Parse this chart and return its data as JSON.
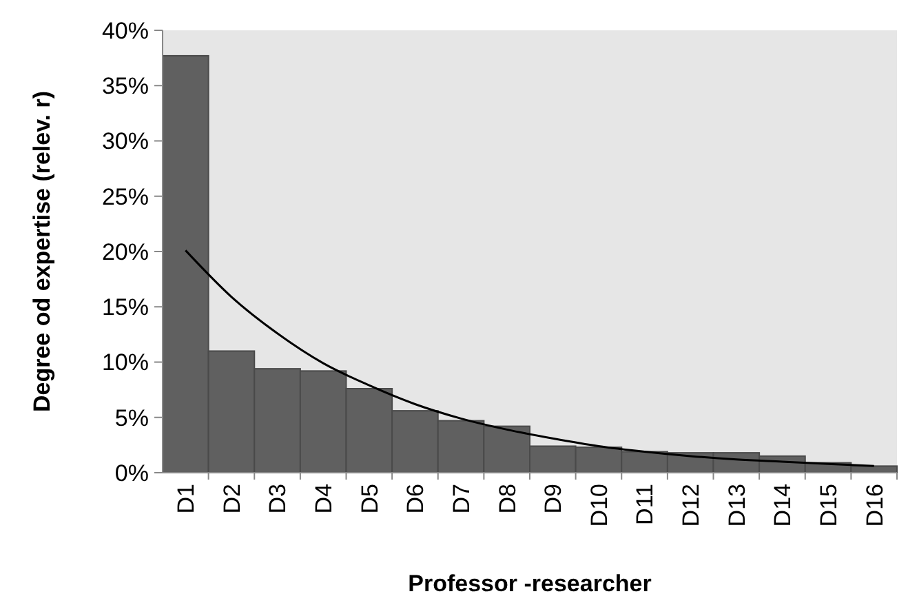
{
  "chart_data": {
    "type": "bar",
    "xlabel": "Professor -researcher",
    "ylabel": "Degree od expertise (relev. r)",
    "categories": [
      "D1",
      "D2",
      "D3",
      "D4",
      "D5",
      "D6",
      "D7",
      "D8",
      "D9",
      "D10",
      "D11",
      "D12",
      "D13",
      "D14",
      "D15",
      "D16"
    ],
    "series": [
      {
        "color": "#606060",
        "values": [
          37.7,
          11.0,
          9.4,
          9.2,
          7.6,
          5.6,
          4.7,
          4.2,
          2.4,
          2.3,
          1.9,
          1.8,
          1.8,
          1.5,
          0.9,
          0.6
        ]
      },
      {
        "type": "line",
        "color": "#000000",
        "values": [
          20.1,
          15.9,
          12.6,
          9.9,
          7.9,
          6.2,
          4.9,
          3.9,
          3.1,
          2.4,
          1.9,
          1.5,
          1.2,
          1.0,
          0.8,
          0.6
        ]
      }
    ],
    "ylim": [
      0,
      40
    ],
    "yticks": [
      {
        "value": 0,
        "label": "0%"
      },
      {
        "value": 5,
        "label": "5%"
      },
      {
        "value": 10,
        "label": "10%"
      },
      {
        "value": 15,
        "label": "15%"
      },
      {
        "value": 20,
        "label": "20%"
      },
      {
        "value": 25,
        "label": "25%"
      },
      {
        "value": 30,
        "label": "30%"
      },
      {
        "value": 35,
        "label": "35%"
      },
      {
        "value": 40,
        "label": "40%"
      }
    ],
    "grid": false
  }
}
